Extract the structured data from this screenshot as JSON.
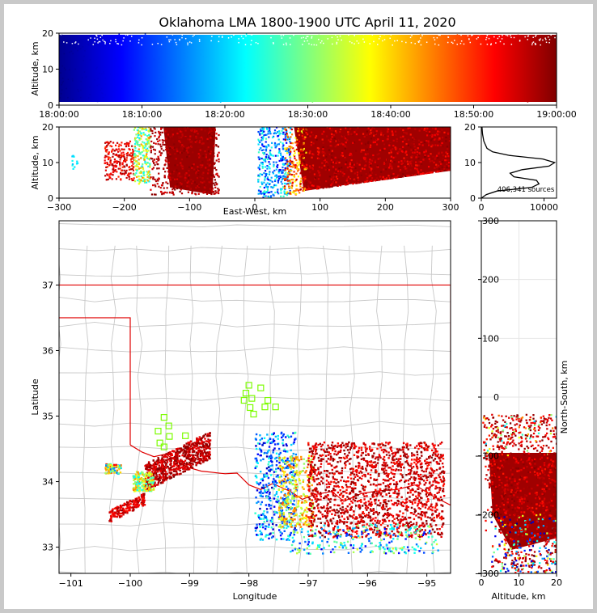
{
  "chart_data": [
    {
      "id": "time_height",
      "type": "scatter",
      "title": "Oklahoma LMA 1800-1900 UTC April 11, 2020",
      "ylabel": "Altitude, km",
      "ylim": [
        0,
        20
      ],
      "yticks": [
        "0",
        "10",
        "20"
      ],
      "xticks": [
        "18:00:00",
        "18:10:00",
        "18:20:00",
        "18:30:00",
        "18:40:00",
        "18:50:00",
        "19:00:00"
      ],
      "xrange": [
        "18:00:00",
        "19:00:00"
      ],
      "color_by": "time",
      "colormap": "jet"
    },
    {
      "id": "east_west_height",
      "type": "scatter",
      "xlabel": "East-West, km",
      "ylabel": "Altitude, km",
      "xlim": [
        -300,
        300
      ],
      "ylim": [
        0,
        20
      ],
      "xticks": [
        "−300",
        "−200",
        "−100",
        "0",
        "100",
        "200",
        "300"
      ],
      "yticks": [
        "0",
        "10",
        "20"
      ],
      "clusters": [
        {
          "x_range": [
            -230,
            -180
          ],
          "alt_range": [
            5,
            15
          ],
          "time_color": "red"
        },
        {
          "x_range": [
            -175,
            -55
          ],
          "alt_range": [
            1,
            20
          ],
          "time_color": "darkred"
        },
        {
          "x_range": [
            10,
            70
          ],
          "alt_range": [
            0,
            20
          ],
          "time_color": "blue-cyan"
        },
        {
          "x_range": [
            70,
            300
          ],
          "alt_range": [
            2,
            20
          ],
          "time_color": "darkred"
        }
      ]
    },
    {
      "id": "altitude_histogram",
      "type": "line",
      "xlim": [
        0,
        12000
      ],
      "ylim": [
        0,
        20
      ],
      "xticks": [
        "0",
        "10000"
      ],
      "yticks": [
        "0",
        "10",
        "20"
      ],
      "annotation": "406,341 sources",
      "profile": {
        "alt": [
          0,
          1,
          2,
          3,
          4,
          5,
          6,
          7,
          8,
          9,
          10,
          11,
          12,
          13,
          14,
          16,
          18,
          20
        ],
        "count": [
          0,
          800,
          2500,
          8000,
          9200,
          8800,
          5200,
          4600,
          6500,
          10800,
          11700,
          9800,
          4500,
          1800,
          900,
          400,
          200,
          100
        ]
      }
    },
    {
      "id": "plan_view",
      "type": "scatter",
      "xlabel": "Longitude",
      "ylabel": "Latitude",
      "xlim": [
        -101.2,
        -94.6
      ],
      "ylim": [
        32.6,
        37.98
      ],
      "xticks": [
        "−101",
        "−100",
        "−99",
        "−98",
        "−97",
        "−96",
        "−95"
      ],
      "yticks": [
        "33",
        "34",
        "35",
        "36",
        "37"
      ],
      "station_marker": "green square",
      "stations": [
        [
          -98.0,
          35.47
        ],
        [
          -97.8,
          35.43
        ],
        [
          -98.05,
          35.35
        ],
        [
          -97.95,
          35.27
        ],
        [
          -98.08,
          35.24
        ],
        [
          -97.68,
          35.24
        ],
        [
          -97.73,
          35.14
        ],
        [
          -97.55,
          35.14
        ],
        [
          -97.98,
          35.13
        ],
        [
          -97.92,
          35.03
        ],
        [
          -99.43,
          34.98
        ],
        [
          -99.35,
          34.85
        ],
        [
          -99.53,
          34.77
        ],
        [
          -99.07,
          34.7
        ],
        [
          -99.34,
          34.69
        ],
        [
          -99.5,
          34.59
        ],
        [
          -99.43,
          34.53
        ]
      ],
      "clusters": [
        {
          "lon": [
            -100.3,
            -99.75
          ],
          "lat": [
            33.4,
            33.7
          ],
          "time_color": "red"
        },
        {
          "lon": [
            -100.4,
            -100.1
          ],
          "lat": [
            34.12,
            34.27
          ],
          "time_color": "green-red"
        },
        {
          "lon": [
            -99.7,
            -98.7
          ],
          "lat": [
            33.85,
            34.5
          ],
          "time_color": "darkred"
        },
        {
          "lon": [
            -97.8,
            -97.2
          ],
          "lat": [
            33.1,
            34.7
          ],
          "time_color": "blue-cyan"
        },
        {
          "lon": [
            -97.6,
            -94.8
          ],
          "lat": [
            33.0,
            34.8
          ],
          "time_color": "darkred"
        }
      ]
    },
    {
      "id": "north_south_height",
      "type": "scatter",
      "xlabel": "Altitude, km",
      "ylabel": "North-South, km",
      "xlim": [
        0,
        20
      ],
      "ylim": [
        -300,
        300
      ],
      "xticks": [
        "0",
        "10",
        "20"
      ],
      "yticks": [
        "−300",
        "−200",
        "−100",
        "0",
        "100",
        "200",
        "300"
      ],
      "clusters": [
        {
          "alt_range": [
            1,
            20
          ],
          "ns_range": [
            -300,
            -30
          ],
          "time_color": "darkred"
        }
      ]
    }
  ]
}
